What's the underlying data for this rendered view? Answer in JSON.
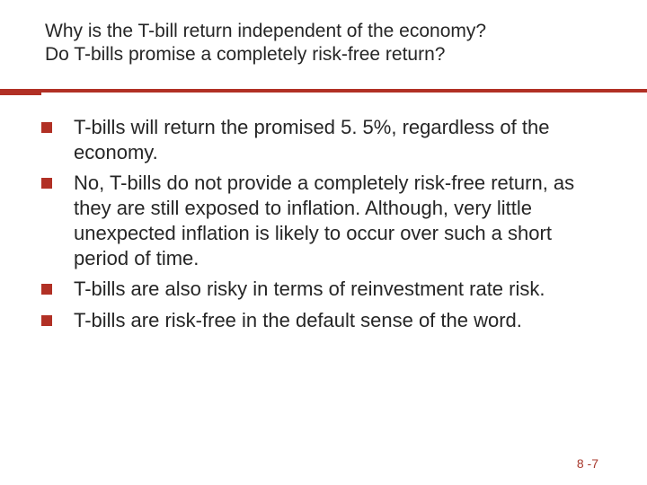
{
  "title": {
    "line1": "Why is the T-bill return independent of the economy?",
    "line2": "Do T-bills promise a completely risk-free return?"
  },
  "bullets": [
    "T-bills will return the promised 5. 5%, regardless of the economy.",
    "No, T-bills do not provide a completely risk-free return, as they are still exposed to inflation. Although, very little unexpected inflation is likely to occur over such a short period of time.",
    "T-bills are also risky in terms of reinvestment rate risk.",
    "T-bills are risk-free in the default sense of the word."
  ],
  "pageNumber": "8 -7",
  "colors": {
    "accent": "#b13025",
    "text": "#262626",
    "pageNum": "#a83a2e",
    "background": "#ffffff"
  },
  "typography": {
    "title_fontsize": 21,
    "body_fontsize": 22,
    "pagenum_fontsize": 14,
    "font_family": "Verdana"
  }
}
